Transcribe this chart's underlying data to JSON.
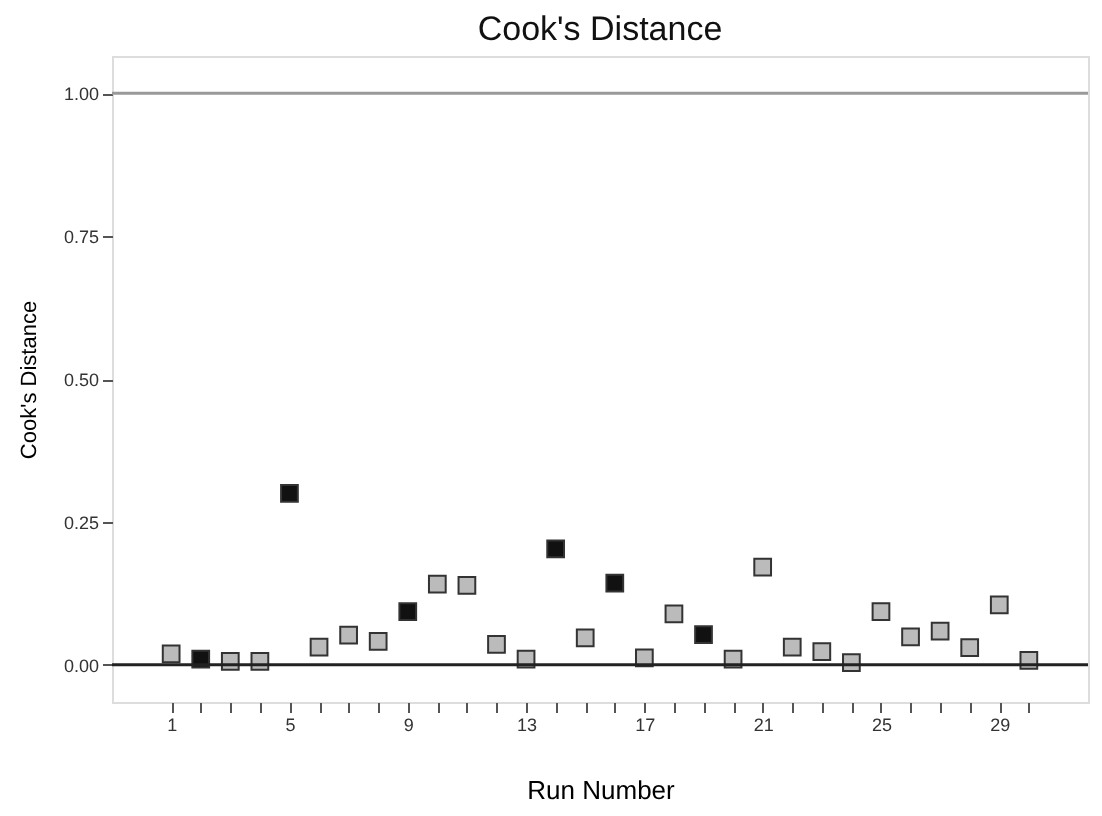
{
  "chart_data": {
    "type": "scatter",
    "title": "Cook's Distance",
    "xlabel": "Run Number",
    "ylabel": "Cook's Distance",
    "x": [
      1,
      2,
      3,
      4,
      5,
      6,
      7,
      8,
      9,
      10,
      11,
      12,
      13,
      14,
      15,
      16,
      17,
      18,
      19,
      20,
      21,
      22,
      23,
      24,
      25,
      26,
      27,
      28,
      29,
      30
    ],
    "values": [
      0.019,
      0.01,
      0.006,
      0.006,
      0.3,
      0.031,
      0.052,
      0.041,
      0.093,
      0.141,
      0.139,
      0.036,
      0.01,
      0.203,
      0.047,
      0.143,
      0.012,
      0.089,
      0.053,
      0.01,
      0.171,
      0.031,
      0.023,
      0.004,
      0.093,
      0.049,
      0.059,
      0.03,
      0.105,
      0.008
    ],
    "colors": [
      "#bbbbbb",
      "#111111",
      "#bbbbbb",
      "#bbbbbb",
      "#111111",
      "#bbbbbb",
      "#bbbbbb",
      "#bbbbbb",
      "#111111",
      "#bbbbbb",
      "#bbbbbb",
      "#bbbbbb",
      "#bbbbbb",
      "#111111",
      "#bbbbbb",
      "#111111",
      "#bbbbbb",
      "#bbbbbb",
      "#111111",
      "#bbbbbb",
      "#bbbbbb",
      "#bbbbbb",
      "#bbbbbb",
      "#bbbbbb",
      "#bbbbbb",
      "#bbbbbb",
      "#bbbbbb",
      "#bbbbbb",
      "#bbbbbb",
      "#bbbbbb"
    ],
    "marker": "square",
    "grid": false,
    "legend": false,
    "xlim": [
      -1,
      32
    ],
    "xticks": [
      1,
      {
        "value": 2,
        "label": null
      },
      {
        "value": 3,
        "label": null
      },
      {
        "value": 4,
        "label": null
      },
      5,
      {
        "value": 6,
        "label": null
      },
      {
        "value": 7,
        "label": null
      },
      {
        "value": 8,
        "label": null
      },
      9,
      {
        "value": 10,
        "label": null
      },
      {
        "value": 11,
        "label": null
      },
      {
        "value": 12,
        "label": null
      },
      13,
      {
        "value": 14,
        "label": null
      },
      {
        "value": 15,
        "label": null
      },
      {
        "value": 16,
        "label": null
      },
      17,
      {
        "value": 18,
        "label": null
      },
      {
        "value": 19,
        "label": null
      },
      {
        "value": 20,
        "label": null
      },
      21,
      {
        "value": 22,
        "label": null
      },
      {
        "value": 23,
        "label": null
      },
      {
        "value": 24,
        "label": null
      },
      25,
      {
        "value": 26,
        "label": null
      },
      {
        "value": 27,
        "label": null
      },
      {
        "value": 28,
        "label": null
      },
      29,
      {
        "value": 30,
        "label": null
      }
    ],
    "ylim": [
      -0.065,
      1.065
    ],
    "yticks": [
      {
        "value": 0,
        "label": "0.00"
      },
      {
        "value": 0.25,
        "label": "0.25"
      },
      {
        "value": 0.5,
        "label": "0.50"
      },
      {
        "value": 0.75,
        "label": "0.75"
      },
      {
        "value": 1,
        "label": "1.00"
      }
    ],
    "ref_lines": [
      {
        "axis": "y",
        "value": 1,
        "color": "#999999"
      },
      {
        "axis": "y",
        "value": 0,
        "color": "#222222"
      }
    ]
  }
}
